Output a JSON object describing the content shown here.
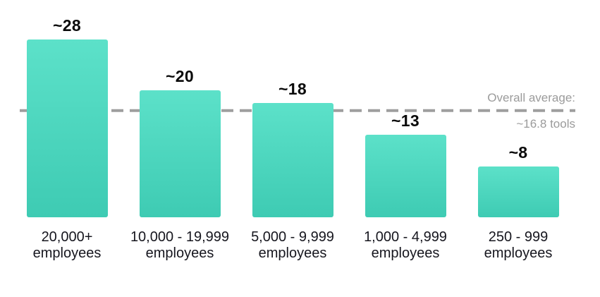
{
  "chart_data": {
    "type": "bar",
    "title": "",
    "xlabel": "",
    "ylabel": "",
    "ylim": [
      0,
      30
    ],
    "grid": false,
    "legend": false,
    "categories": [
      {
        "line1": "20,000+",
        "line2": "employees"
      },
      {
        "line1": "10,000 - 19,999",
        "line2": "employees"
      },
      {
        "line1": "5,000 - 9,999",
        "line2": "employees"
      },
      {
        "line1": "1,000 - 4,999",
        "line2": "employees"
      },
      {
        "line1": "250 - 999",
        "line2": "employees"
      }
    ],
    "values": [
      28,
      20,
      18,
      13,
      8
    ],
    "value_labels": [
      "~28",
      "~20",
      "~18",
      "~13",
      "~8"
    ],
    "average_line": {
      "value": 16.8,
      "style": "dashed",
      "label_line1": "Overall average:",
      "label_line2": "~16.8 tools"
    },
    "colors": {
      "bar_gradient_top": "#5CE1C9",
      "bar_gradient_bottom": "#3ECBB3",
      "average_line": "#9E9E9E",
      "average_text": "#9B9B9B",
      "value_text": "#0A0A0A",
      "category_text": "#16161E"
    }
  }
}
